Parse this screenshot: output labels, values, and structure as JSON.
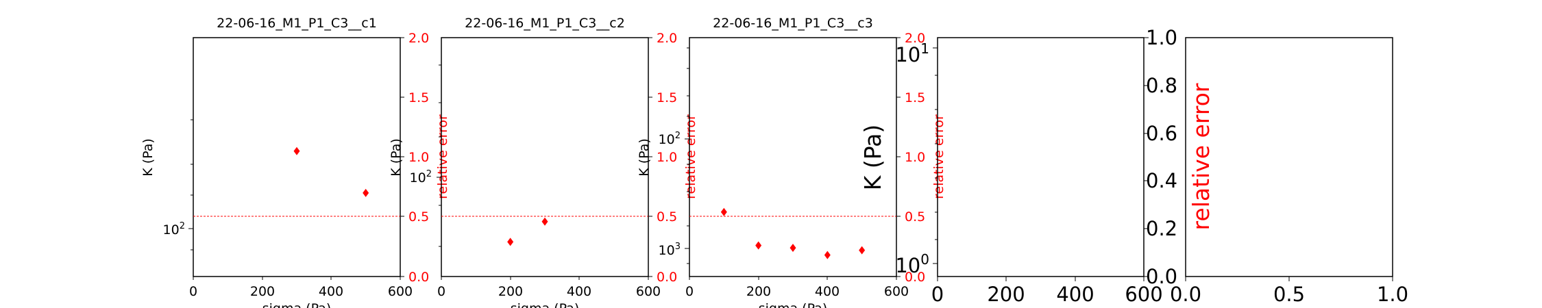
{
  "chart_data": [
    {
      "type": "scatter",
      "title": "22-06-16_M1_P1_C3__c1",
      "xlabel": "sigma (Pa)",
      "ylabel": "K (Pa)",
      "ylabel_right": "relative error",
      "xlim": [
        0,
        600
      ],
      "ylim_right": [
        0,
        2
      ],
      "xticks": [
        "0",
        "200",
        "400",
        "600"
      ],
      "yticks_left": [
        {
          "label": "10²",
          "exp": "2",
          "value": 100
        }
      ],
      "yticks_right": [
        "0.0",
        "0.5",
        "1.0",
        "1.5",
        "2.0"
      ],
      "series": [
        {
          "x": [
            300,
            500
          ],
          "y_right": [
            1.05,
            0.7
          ],
          "marker": "diamond",
          "color": "#ff0000"
        }
      ],
      "hline_right": 0.5
    },
    {
      "type": "scatter",
      "title": "22-06-16_M1_P1_C3__c2",
      "xlabel": "sigma (Pa)",
      "ylabel": "K (Pa)",
      "ylabel_right": "relative error",
      "xlim": [
        0,
        600
      ],
      "ylim_right": [
        0,
        2
      ],
      "xticks": [
        "0",
        "200",
        "400",
        "600"
      ],
      "yticks_left": [
        {
          "label": "10²",
          "exp": "2",
          "value": 100
        }
      ],
      "yticks_right": [
        "0.0",
        "0.5",
        "1.0",
        "1.5",
        "2.0"
      ],
      "series": [
        {
          "x": [
            200,
            300
          ],
          "y_right": [
            0.29,
            0.46
          ],
          "marker": "diamond",
          "color": "#ff0000"
        }
      ],
      "hline_right": 0.5
    },
    {
      "type": "scatter",
      "title": "22-06-16_M1_P1_C3__c3",
      "xlabel": "sigma (Pa)",
      "ylabel": "K (Pa)",
      "ylabel_right": "relative error",
      "xlim": [
        0,
        600
      ],
      "ylim_right": [
        0,
        2
      ],
      "xticks": [
        "0",
        "200",
        "400",
        "600"
      ],
      "yticks_left": [
        {
          "label": "10²",
          "exp": "2",
          "value": 100
        },
        {
          "label": "10³",
          "exp": "3",
          "value": 1000
        }
      ],
      "yticks_right": [
        "0.0",
        "0.5",
        "1.0",
        "1.5",
        "2.0"
      ],
      "series": [
        {
          "x": [
            100,
            200,
            300,
            400,
            500
          ],
          "y_right": [
            0.54,
            0.26,
            0.24,
            0.18,
            0.22
          ],
          "marker": "diamond",
          "color": "#ff0000"
        }
      ],
      "hline_right": 0.5
    },
    {
      "type": "scatter",
      "title": "",
      "xlabel": "",
      "ylabel": "K (Pa)",
      "ylabel_right": "relative error",
      "xlim": [
        0,
        600
      ],
      "ylim_right": [
        0,
        1
      ],
      "xticks": [
        "0",
        "200",
        "400",
        "600"
      ],
      "yticks_left": [
        {
          "label": "10⁰",
          "exp": "0",
          "value": 1
        },
        {
          "label": "10¹",
          "exp": "1",
          "value": 10
        }
      ],
      "yticks_right": [
        "0.0",
        "0.2",
        "0.4",
        "0.6",
        "0.8",
        "1.0"
      ],
      "series": []
    },
    {
      "type": "scatter",
      "title": "",
      "xlabel": "",
      "ylabel": "",
      "xlim": [
        0,
        1
      ],
      "ylim": [
        0,
        1
      ],
      "xticks": [
        "0.0",
        "0.5",
        "1.0"
      ],
      "series": []
    }
  ],
  "colors": {
    "accent": "#ff0000",
    "axis": "#000000"
  }
}
